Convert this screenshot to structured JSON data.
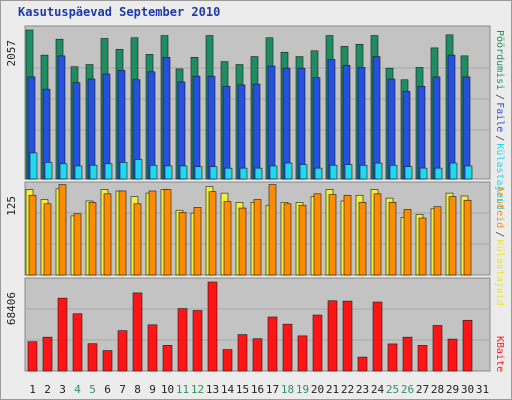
{
  "chart_data": {
    "title": "Kasutuspäevad September 2010",
    "type": "bar",
    "x": [
      "1",
      "2",
      "3",
      "4",
      "5",
      "6",
      "7",
      "8",
      "9",
      "10",
      "11",
      "12",
      "13",
      "14",
      "15",
      "16",
      "17",
      "18",
      "19",
      "20",
      "21",
      "22",
      "23",
      "24",
      "25",
      "26",
      "27",
      "28",
      "29",
      "30",
      "31"
    ],
    "weekend_days": [
      4,
      5,
      11,
      12,
      18,
      19,
      25,
      26
    ],
    "panels": [
      {
        "name": "top",
        "ymax_label": "2057",
        "ymax": 2057,
        "series": [
          {
            "name": "Pöördumisi",
            "color": "#1e8e62",
            "values": [
              2057,
              1710,
              1930,
              1550,
              1580,
              1940,
              1790,
              1950,
              1720,
              1980,
              1520,
              1680,
              1980,
              1620,
              1580,
              1690,
              1950,
              1750,
              1690,
              1770,
              1980,
              1830,
              1860,
              1980,
              1530,
              1370,
              1540,
              1810,
              1990,
              1700,
              0
            ]
          },
          {
            "name": "Faile",
            "color": "#2550e0",
            "values": [
              1410,
              1240,
              1700,
              1330,
              1380,
              1450,
              1500,
              1370,
              1480,
              1680,
              1340,
              1420,
              1420,
              1280,
              1300,
              1310,
              1560,
              1530,
              1530,
              1400,
              1650,
              1570,
              1540,
              1690,
              1380,
              1210,
              1280,
              1410,
              1710,
              1410,
              0
            ]
          },
          {
            "name": "Külastajaid",
            "color": "#22d8f0",
            "values": [
              360,
              230,
              210,
              180,
              190,
              210,
              230,
              270,
              190,
              180,
              180,
              170,
              170,
              150,
              150,
              150,
              180,
              220,
              200,
              150,
              190,
              200,
              190,
              220,
              190,
              170,
              150,
              150,
              220,
              180,
              0
            ]
          }
        ]
      },
      {
        "name": "middle",
        "ymax_label": "125",
        "ymax": 125,
        "series": [
          {
            "name": "Külastajaid",
            "color": "#f0f03a",
            "values": [
              120,
              106,
              121,
              83,
              104,
              120,
              118,
              110,
              115,
              120,
              91,
              87,
              124,
              115,
              102,
              102,
              98,
              102,
              102,
              110,
              120,
              104,
              112,
              120,
              108,
              81,
              85,
              93,
              115,
              111,
              0
            ]
          },
          {
            "name": "Aruteid",
            "color": "#ff8c00",
            "values": [
              112,
              100,
              127,
              86,
              102,
              114,
              118,
              100,
              118,
              120,
              88,
              95,
              117,
              103,
              94,
              106,
              127,
              100,
              98,
              114,
              113,
              112,
              102,
              114,
              102,
              92,
              80,
              96,
              110,
              105,
              0
            ]
          }
        ]
      },
      {
        "name": "bottom",
        "ymax_label": "68406",
        "ymax": 68406,
        "series": [
          {
            "name": "KBaite",
            "color": "#ff1515",
            "values": [
              22500,
              26000,
              56000,
              44000,
              21000,
              15700,
              31000,
              60000,
              35500,
              19700,
              48000,
              46500,
              68406,
              16500,
              28000,
              24800,
              41500,
              36000,
              27000,
              43000,
              54000,
              53700,
              10700,
              53000,
              20800,
              26000,
              19700,
              35000,
              24500,
              39000,
              0
            ]
          }
        ]
      }
    ],
    "legend": [
      "Pöördumisi",
      "Faile",
      "Külastajaid",
      "Aruteid",
      "KBaite"
    ],
    "legend_colors": [
      "#1e8e62",
      "#2550e0",
      "#22d8f0",
      "#ff8c00",
      "#ff1515"
    ]
  }
}
